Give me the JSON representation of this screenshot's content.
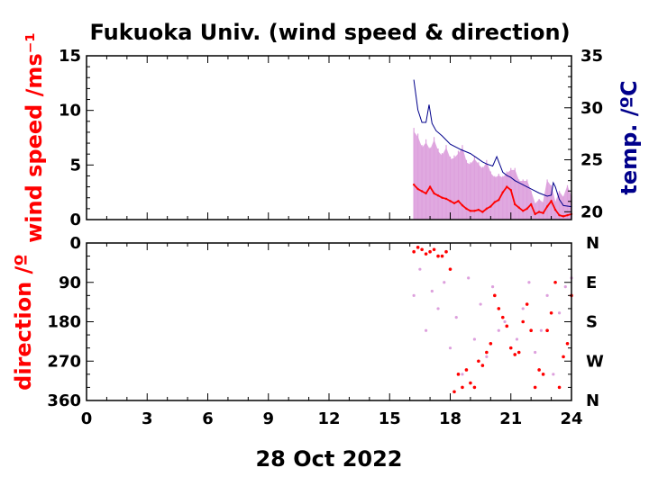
{
  "title": "Fukuoka Univ. (wind speed & direction)",
  "date_label": "28 Oct 2022",
  "colors": {
    "wind": "#ff0000",
    "gust": "#dda0dd",
    "temp": "#00008b",
    "axis": "#000000"
  },
  "chart_data": [
    {
      "type": "line",
      "panel": "wind-speed",
      "ylabel": "wind speed /ms⁻¹",
      "y2label": "temp. /ºC",
      "xlim": [
        0,
        24
      ],
      "ylim": [
        0,
        15
      ],
      "y2lim": [
        19.25,
        35
      ],
      "yticks": [
        "0",
        "5",
        "10",
        "15"
      ],
      "y2ticks": [
        "20",
        "25",
        "30",
        "35"
      ],
      "series": [
        {
          "role": "gust",
          "x": [
            16.2,
            16.4,
            16.6,
            16.8,
            17.0,
            17.2,
            17.4,
            17.6,
            17.8,
            18.0,
            18.2,
            18.4,
            18.6,
            18.8,
            19.0,
            19.2,
            19.4,
            19.6,
            19.8,
            20.0,
            20.2,
            20.4,
            20.6,
            20.8,
            21.0,
            21.2,
            21.4,
            21.6,
            21.8,
            22.0,
            22.2,
            22.4,
            22.6,
            22.8,
            23.0,
            23.2,
            23.4,
            23.6,
            23.8,
            24.0
          ],
          "y": [
            8.0,
            7.5,
            6.5,
            7.0,
            6.3,
            7.2,
            6.2,
            5.8,
            6.5,
            5.5,
            5.6,
            6.0,
            6.5,
            5.2,
            5.0,
            5.5,
            5.0,
            4.6,
            5.2,
            4.2,
            3.8,
            4.0,
            3.8,
            4.2,
            4.5,
            4.5,
            3.5,
            3.5,
            3.5,
            2.5,
            1.4,
            1.8,
            1.5,
            3.5,
            3.0,
            1.5,
            2.5,
            2.0,
            3.0,
            2.0
          ]
        },
        {
          "role": "wind",
          "x": [
            16.2,
            16.4,
            16.6,
            16.8,
            17.0,
            17.2,
            17.4,
            17.6,
            17.8,
            18.0,
            18.2,
            18.4,
            18.6,
            18.8,
            19.0,
            19.2,
            19.4,
            19.6,
            19.8,
            20.0,
            20.2,
            20.4,
            20.6,
            20.8,
            21.0,
            21.2,
            21.4,
            21.6,
            21.8,
            22.0,
            22.2,
            22.4,
            22.6,
            22.8,
            23.0,
            23.2,
            23.4,
            23.6,
            23.8,
            24.0
          ],
          "y": [
            3.2,
            2.8,
            2.6,
            2.4,
            3.0,
            2.4,
            2.2,
            2.0,
            1.9,
            1.7,
            1.5,
            1.7,
            1.3,
            1.0,
            0.8,
            0.8,
            0.9,
            0.7,
            1.0,
            1.2,
            1.6,
            1.8,
            2.5,
            3.0,
            2.7,
            1.4,
            1.1,
            0.8,
            1.0,
            1.4,
            0.5,
            0.7,
            0.6,
            1.2,
            1.7,
            0.9,
            0.4,
            0.3,
            0.4,
            0.5
          ]
        },
        {
          "role": "temperature",
          "axis": "right",
          "x": [
            16.2,
            16.4,
            16.6,
            16.8,
            16.95,
            17.1,
            17.3,
            17.6,
            18.0,
            18.5,
            19.0,
            19.3,
            19.6,
            19.8,
            20.1,
            20.3,
            20.6,
            20.8,
            21.0,
            21.2,
            21.6,
            22.0,
            22.4,
            22.8,
            23.0,
            23.1,
            23.2,
            23.4,
            23.6,
            24.0
          ],
          "y": [
            32.7,
            29.8,
            28.6,
            28.6,
            30.3,
            28.5,
            27.8,
            27.3,
            26.5,
            26.0,
            25.6,
            25.2,
            24.8,
            24.6,
            24.4,
            25.3,
            23.8,
            23.5,
            23.3,
            23.0,
            22.6,
            22.2,
            21.8,
            21.5,
            21.6,
            22.8,
            22.4,
            21.2,
            20.6,
            20.5
          ]
        }
      ]
    },
    {
      "type": "scatter",
      "panel": "direction",
      "ylabel": "direction /º",
      "xlabel": "28 Oct 2022",
      "xlim": [
        0,
        24
      ],
      "ylim": [
        360,
        0
      ],
      "xticks": [
        "0",
        "3",
        "6",
        "9",
        "12",
        "15",
        "18",
        "21",
        "24"
      ],
      "yticks": [
        "0",
        "90",
        "180",
        "270",
        "360"
      ],
      "y2ticks": [
        "N",
        "E",
        "S",
        "W",
        "N"
      ],
      "series": [
        {
          "role": "instantaneous",
          "x": [
            16.2,
            16.5,
            16.8,
            17.1,
            17.4,
            17.7,
            18.0,
            18.3,
            18.6,
            18.9,
            19.2,
            19.5,
            19.8,
            20.1,
            20.4,
            20.7,
            21.0,
            21.3,
            21.6,
            21.9,
            22.2,
            22.5,
            22.8,
            23.1,
            23.4,
            23.7,
            24.0
          ],
          "y": [
            120,
            60,
            200,
            110,
            150,
            90,
            240,
            170,
            300,
            80,
            220,
            140,
            260,
            100,
            200,
            180,
            240,
            220,
            150,
            90,
            250,
            200,
            120,
            300,
            160,
            100,
            80
          ]
        },
        {
          "role": "mean",
          "x": [
            16.2,
            16.4,
            16.6,
            16.8,
            17.0,
            17.2,
            17.4,
            17.6,
            17.8,
            18.0,
            18.2,
            18.4,
            18.6,
            18.8,
            19.0,
            19.2,
            19.4,
            19.6,
            19.8,
            20.0,
            20.2,
            20.4,
            20.6,
            20.8,
            21.0,
            21.2,
            21.4,
            21.6,
            21.8,
            22.0,
            22.2,
            22.4,
            22.6,
            22.8,
            23.0,
            23.2,
            23.4,
            23.6,
            23.8,
            24.0
          ],
          "y": [
            20,
            10,
            15,
            25,
            20,
            15,
            30,
            30,
            20,
            60,
            340,
            300,
            330,
            290,
            320,
            330,
            270,
            280,
            250,
            230,
            120,
            150,
            170,
            190,
            240,
            255,
            250,
            180,
            140,
            200,
            330,
            290,
            300,
            200,
            160,
            90,
            330,
            260,
            230,
            120
          ]
        }
      ]
    }
  ]
}
